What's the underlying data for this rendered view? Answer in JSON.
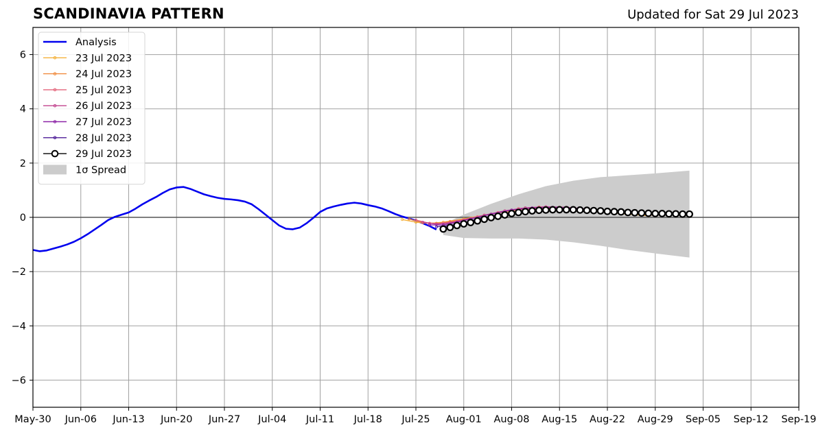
{
  "title": "SCANDINAVIA PATTERN",
  "subtitle": "Updated for Sat 29 Jul 2023",
  "chart_data": {
    "type": "line",
    "title": "SCANDINAVIA PATTERN",
    "xlabel": "",
    "ylabel": "",
    "x_axis": {
      "start": "May-30",
      "end": "Sep-19",
      "ticks": [
        "May-30",
        "Jun-06",
        "Jun-13",
        "Jun-20",
        "Jun-27",
        "Jul-04",
        "Jul-11",
        "Jul-18",
        "Jul-25",
        "Aug-01",
        "Aug-08",
        "Aug-15",
        "Aug-22",
        "Aug-29",
        "Sep-05",
        "Sep-12",
        "Sep-19"
      ]
    },
    "ylim": [
      -7,
      7
    ],
    "yticks": [
      -6,
      -4,
      -2,
      0,
      2,
      4,
      6
    ],
    "ytick_labels": [
      "−6",
      "−4",
      "−2",
      "0",
      "2",
      "4",
      "6"
    ],
    "grid": true,
    "legend_position": "top-left",
    "series": [
      {
        "name": "Analysis",
        "color": "#0000ee",
        "style": "line",
        "points": [
          [
            "May-30",
            -1.2
          ],
          [
            "May-31",
            -1.25
          ],
          [
            "Jun-01",
            -1.22
          ],
          [
            "Jun-02",
            -1.15
          ],
          [
            "Jun-03",
            -1.08
          ],
          [
            "Jun-04",
            -1.0
          ],
          [
            "Jun-05",
            -0.9
          ],
          [
            "Jun-06",
            -0.77
          ],
          [
            "Jun-07",
            -0.62
          ],
          [
            "Jun-08",
            -0.45
          ],
          [
            "Jun-09",
            -0.28
          ],
          [
            "Jun-10",
            -0.1
          ],
          [
            "Jun-11",
            0.02
          ],
          [
            "Jun-12",
            0.1
          ],
          [
            "Jun-13",
            0.18
          ],
          [
            "Jun-14",
            0.32
          ],
          [
            "Jun-15",
            0.48
          ],
          [
            "Jun-16",
            0.62
          ],
          [
            "Jun-17",
            0.75
          ],
          [
            "Jun-18",
            0.9
          ],
          [
            "Jun-19",
            1.03
          ],
          [
            "Jun-20",
            1.1
          ],
          [
            "Jun-21",
            1.12
          ],
          [
            "Jun-22",
            1.05
          ],
          [
            "Jun-23",
            0.95
          ],
          [
            "Jun-24",
            0.85
          ],
          [
            "Jun-25",
            0.78
          ],
          [
            "Jun-26",
            0.72
          ],
          [
            "Jun-27",
            0.68
          ],
          [
            "Jun-28",
            0.66
          ],
          [
            "Jun-29",
            0.63
          ],
          [
            "Jun-30",
            0.58
          ],
          [
            "Jul-01",
            0.48
          ],
          [
            "Jul-02",
            0.3
          ],
          [
            "Jul-03",
            0.1
          ],
          [
            "Jul-04",
            -0.1
          ],
          [
            "Jul-05",
            -0.3
          ],
          [
            "Jul-06",
            -0.42
          ],
          [
            "Jul-07",
            -0.44
          ],
          [
            "Jul-08",
            -0.38
          ],
          [
            "Jul-09",
            -0.22
          ],
          [
            "Jul-10",
            -0.02
          ],
          [
            "Jul-11",
            0.2
          ],
          [
            "Jul-12",
            0.33
          ],
          [
            "Jul-13",
            0.4
          ],
          [
            "Jul-14",
            0.46
          ],
          [
            "Jul-15",
            0.51
          ],
          [
            "Jul-16",
            0.54
          ],
          [
            "Jul-17",
            0.51
          ],
          [
            "Jul-18",
            0.45
          ],
          [
            "Jul-19",
            0.4
          ],
          [
            "Jul-20",
            0.33
          ],
          [
            "Jul-21",
            0.23
          ],
          [
            "Jul-22",
            0.12
          ],
          [
            "Jul-23",
            0.03
          ],
          [
            "Jul-24",
            -0.04
          ],
          [
            "Jul-25",
            -0.12
          ],
          [
            "Jul-26",
            -0.22
          ],
          [
            "Jul-27",
            -0.32
          ],
          [
            "Jul-28",
            -0.45
          ]
        ]
      },
      {
        "name": "23 Jul 2023",
        "color": "#f4b13a",
        "style": "line-dots",
        "points": [
          [
            "Jul-23",
            -0.08
          ],
          [
            "Jul-25",
            -0.18
          ],
          [
            "Jul-27",
            -0.22
          ],
          [
            "Jul-29",
            -0.18
          ],
          [
            "Aug-01",
            -0.06
          ],
          [
            "Aug-04",
            0.08
          ],
          [
            "Aug-07",
            0.2
          ],
          [
            "Aug-10",
            0.26
          ],
          [
            "Aug-13",
            0.28
          ],
          [
            "Aug-16",
            0.27
          ],
          [
            "Aug-19",
            0.24
          ],
          [
            "Aug-22",
            0.18
          ],
          [
            "Aug-25",
            0.12
          ],
          [
            "Aug-28",
            0.06
          ]
        ]
      },
      {
        "name": "24 Jul 2023",
        "color": "#f08a3c",
        "style": "line-dots",
        "points": [
          [
            "Jul-24",
            -0.06
          ],
          [
            "Jul-26",
            -0.2
          ],
          [
            "Jul-28",
            -0.22
          ],
          [
            "Jul-30",
            -0.15
          ],
          [
            "Aug-02",
            -0.03
          ],
          [
            "Aug-05",
            0.12
          ],
          [
            "Aug-08",
            0.26
          ],
          [
            "Aug-11",
            0.33
          ],
          [
            "Aug-14",
            0.34
          ],
          [
            "Aug-17",
            0.31
          ],
          [
            "Aug-20",
            0.26
          ],
          [
            "Aug-23",
            0.2
          ],
          [
            "Aug-26",
            0.13
          ],
          [
            "Aug-29",
            0.07
          ]
        ]
      },
      {
        "name": "25 Jul 2023",
        "color": "#e4637a",
        "style": "line-dots",
        "points": [
          [
            "Jul-25",
            -0.1
          ],
          [
            "Jul-27",
            -0.22
          ],
          [
            "Jul-29",
            -0.22
          ],
          [
            "Jul-31",
            -0.14
          ],
          [
            "Aug-03",
            0.02
          ],
          [
            "Aug-06",
            0.18
          ],
          [
            "Aug-09",
            0.32
          ],
          [
            "Aug-12",
            0.38
          ],
          [
            "Aug-15",
            0.37
          ],
          [
            "Aug-18",
            0.32
          ],
          [
            "Aug-21",
            0.26
          ],
          [
            "Aug-24",
            0.19
          ],
          [
            "Aug-27",
            0.13
          ],
          [
            "Aug-30",
            0.08
          ]
        ]
      },
      {
        "name": "26 Jul 2023",
        "color": "#c0418c",
        "style": "line-dots",
        "points": [
          [
            "Jul-26",
            -0.18
          ],
          [
            "Jul-28",
            -0.25
          ],
          [
            "Jul-30",
            -0.2
          ],
          [
            "Aug-01",
            -0.1
          ],
          [
            "Aug-04",
            0.08
          ],
          [
            "Aug-07",
            0.24
          ],
          [
            "Aug-10",
            0.35
          ],
          [
            "Aug-13",
            0.39
          ],
          [
            "Aug-16",
            0.37
          ],
          [
            "Aug-19",
            0.31
          ],
          [
            "Aug-22",
            0.24
          ],
          [
            "Aug-25",
            0.18
          ],
          [
            "Aug-28",
            0.13
          ],
          [
            "Aug-31",
            0.1
          ]
        ]
      },
      {
        "name": "27 Jul 2023",
        "color": "#8b22a6",
        "style": "line-dots",
        "points": [
          [
            "Jul-27",
            -0.28
          ],
          [
            "Jul-29",
            -0.28
          ],
          [
            "Jul-31",
            -0.18
          ],
          [
            "Aug-02",
            -0.06
          ],
          [
            "Aug-05",
            0.12
          ],
          [
            "Aug-08",
            0.27
          ],
          [
            "Aug-11",
            0.35
          ],
          [
            "Aug-14",
            0.37
          ],
          [
            "Aug-17",
            0.34
          ],
          [
            "Aug-20",
            0.28
          ],
          [
            "Aug-23",
            0.22
          ],
          [
            "Aug-26",
            0.17
          ],
          [
            "Aug-29",
            0.13
          ],
          [
            "Sep-01",
            0.11
          ]
        ]
      },
      {
        "name": "28 Jul 2023",
        "color": "#4b1a96",
        "style": "line-dots",
        "points": [
          [
            "Jul-28",
            -0.35
          ],
          [
            "Jul-30",
            -0.3
          ],
          [
            "Aug-01",
            -0.2
          ],
          [
            "Aug-03",
            -0.06
          ],
          [
            "Aug-06",
            0.1
          ],
          [
            "Aug-09",
            0.22
          ],
          [
            "Aug-12",
            0.29
          ],
          [
            "Aug-15",
            0.31
          ],
          [
            "Aug-18",
            0.29
          ],
          [
            "Aug-21",
            0.25
          ],
          [
            "Aug-24",
            0.2
          ],
          [
            "Aug-27",
            0.16
          ],
          [
            "Aug-30",
            0.13
          ],
          [
            "Sep-02",
            0.12
          ]
        ]
      },
      {
        "name": "29 Jul 2023",
        "color": "#000000",
        "style": "open-circles",
        "points": [
          [
            "Jul-29",
            -0.43
          ],
          [
            "Jul-30",
            -0.37
          ],
          [
            "Jul-31",
            -0.3
          ],
          [
            "Aug-01",
            -0.24
          ],
          [
            "Aug-02",
            -0.19
          ],
          [
            "Aug-03",
            -0.13
          ],
          [
            "Aug-04",
            -0.07
          ],
          [
            "Aug-05",
            -0.01
          ],
          [
            "Aug-06",
            0.04
          ],
          [
            "Aug-07",
            0.09
          ],
          [
            "Aug-08",
            0.14
          ],
          [
            "Aug-09",
            0.18
          ],
          [
            "Aug-10",
            0.21
          ],
          [
            "Aug-11",
            0.24
          ],
          [
            "Aug-12",
            0.26
          ],
          [
            "Aug-13",
            0.27
          ],
          [
            "Aug-14",
            0.28
          ],
          [
            "Aug-15",
            0.28
          ],
          [
            "Aug-16",
            0.28
          ],
          [
            "Aug-17",
            0.28
          ],
          [
            "Aug-18",
            0.27
          ],
          [
            "Aug-19",
            0.26
          ],
          [
            "Aug-20",
            0.25
          ],
          [
            "Aug-21",
            0.24
          ],
          [
            "Aug-22",
            0.22
          ],
          [
            "Aug-23",
            0.21
          ],
          [
            "Aug-24",
            0.2
          ],
          [
            "Aug-25",
            0.18
          ],
          [
            "Aug-26",
            0.17
          ],
          [
            "Aug-27",
            0.16
          ],
          [
            "Aug-28",
            0.15
          ],
          [
            "Aug-29",
            0.14
          ],
          [
            "Aug-30",
            0.14
          ],
          [
            "Aug-31",
            0.13
          ],
          [
            "Sep-01",
            0.13
          ],
          [
            "Sep-02",
            0.12
          ],
          [
            "Sep-03",
            0.12
          ]
        ]
      }
    ],
    "spread": {
      "name": "1σ Spread",
      "color": "#cccccc",
      "upper": [
        [
          "Jul-29",
          -0.25
        ],
        [
          "Aug-01",
          0.1
        ],
        [
          "Aug-05",
          0.5
        ],
        [
          "Aug-09",
          0.85
        ],
        [
          "Aug-13",
          1.15
        ],
        [
          "Aug-17",
          1.35
        ],
        [
          "Aug-21",
          1.48
        ],
        [
          "Aug-25",
          1.55
        ],
        [
          "Aug-29",
          1.62
        ],
        [
          "Sep-03",
          1.72
        ]
      ],
      "lower": [
        [
          "Jul-29",
          -0.65
        ],
        [
          "Aug-01",
          -0.76
        ],
        [
          "Aug-05",
          -0.78
        ],
        [
          "Aug-09",
          -0.78
        ],
        [
          "Aug-13",
          -0.82
        ],
        [
          "Aug-17",
          -0.92
        ],
        [
          "Aug-21",
          -1.05
        ],
        [
          "Aug-25",
          -1.2
        ],
        [
          "Aug-29",
          -1.33
        ],
        [
          "Sep-03",
          -1.48
        ]
      ]
    }
  }
}
